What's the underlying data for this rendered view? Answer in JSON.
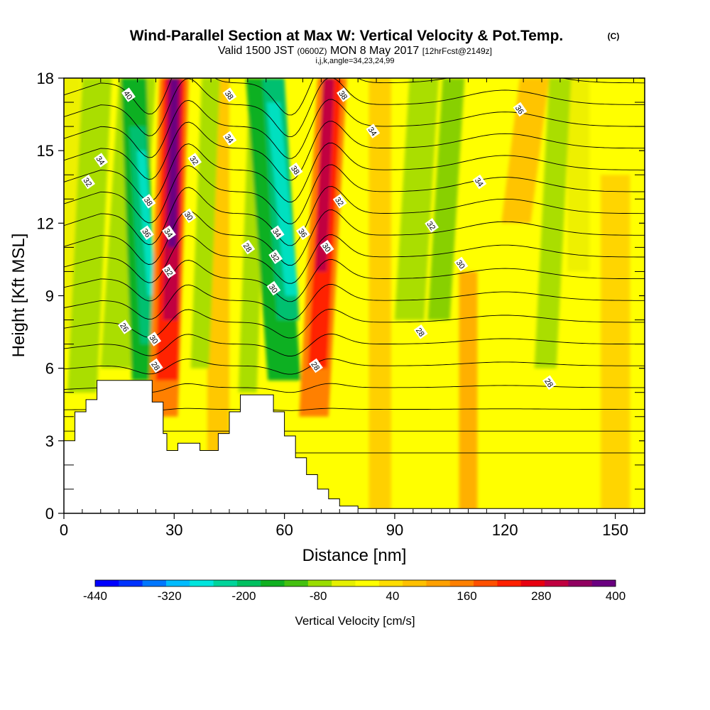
{
  "header": {
    "title": "Wind-Parallel Section at Max W: Vertical Velocity & Pot.Temp.",
    "title_mark": "(C)",
    "valid_prefix": "Valid 1500 JST",
    "valid_utc": "(0600Z)",
    "valid_date": "MON 8 May 2017",
    "forecast": "[12hrFcst@2149z]",
    "indices": "i,j,k,angle=34,23,24,99"
  },
  "chart_data": {
    "type": "heatmap",
    "xlabel": "Distance [nm]",
    "ylabel": "Height [Kft MSL]",
    "xlim": [
      0,
      158
    ],
    "ylim": [
      0,
      18
    ],
    "x_ticks": [
      0,
      30,
      60,
      90,
      120,
      150
    ],
    "x_tick_labels": [
      "0",
      "30",
      "60",
      "90",
      "120",
      "150"
    ],
    "y_ticks": [
      0,
      3,
      6,
      9,
      12,
      15,
      18
    ],
    "y_tick_labels": [
      "0",
      "3",
      "6",
      "9",
      "12",
      "15",
      "18"
    ],
    "colorbar": {
      "label": "Vertical Velocity [cm/s]",
      "tick_labels": [
        "-440",
        "-320",
        "-200",
        "-80",
        "40",
        "160",
        "280",
        "400"
      ],
      "colors": [
        "#0000ff",
        "#0033ff",
        "#0077ff",
        "#00bbff",
        "#00e5dd",
        "#00d49a",
        "#00c060",
        "#10b020",
        "#44c010",
        "#99dd00",
        "#e6f000",
        "#ffff00",
        "#ffdd00",
        "#ffc000",
        "#ffa000",
        "#ff8000",
        "#ff5000",
        "#ff2000",
        "#e80010",
        "#c00040",
        "#900060",
        "#6a0080"
      ]
    },
    "theta_contour_labels": [
      {
        "x": 17.5,
        "y": 17.3,
        "text": "40"
      },
      {
        "x": 45,
        "y": 17.3,
        "text": "38"
      },
      {
        "x": 76,
        "y": 17.3,
        "text": "38"
      },
      {
        "x": 124,
        "y": 16.7,
        "text": "36"
      },
      {
        "x": 84,
        "y": 15.8,
        "text": "34"
      },
      {
        "x": 45,
        "y": 15.5,
        "text": "34"
      },
      {
        "x": 10,
        "y": 14.6,
        "text": "34"
      },
      {
        "x": 35.5,
        "y": 14.6,
        "text": "32"
      },
      {
        "x": 63,
        "y": 14.2,
        "text": "38"
      },
      {
        "x": 6.5,
        "y": 13.7,
        "text": "32"
      },
      {
        "x": 113,
        "y": 13.7,
        "text": "34"
      },
      {
        "x": 23,
        "y": 12.9,
        "text": "38"
      },
      {
        "x": 75,
        "y": 12.9,
        "text": "32"
      },
      {
        "x": 34,
        "y": 12.3,
        "text": "30"
      },
      {
        "x": 100,
        "y": 11.9,
        "text": "32"
      },
      {
        "x": 22.5,
        "y": 11.6,
        "text": "36"
      },
      {
        "x": 28.5,
        "y": 11.6,
        "text": "34"
      },
      {
        "x": 58,
        "y": 11.6,
        "text": "34"
      },
      {
        "x": 65,
        "y": 11.6,
        "text": "36"
      },
      {
        "x": 50,
        "y": 11.0,
        "text": "28"
      },
      {
        "x": 71.5,
        "y": 11.0,
        "text": "30"
      },
      {
        "x": 57.5,
        "y": 10.6,
        "text": "32"
      },
      {
        "x": 108,
        "y": 10.3,
        "text": "30"
      },
      {
        "x": 28.5,
        "y": 10.0,
        "text": "32"
      },
      {
        "x": 57,
        "y": 9.3,
        "text": "30"
      },
      {
        "x": 16.5,
        "y": 7.7,
        "text": "26"
      },
      {
        "x": 97,
        "y": 7.5,
        "text": "28"
      },
      {
        "x": 24.5,
        "y": 7.2,
        "text": "30"
      },
      {
        "x": 25,
        "y": 6.1,
        "text": "28"
      },
      {
        "x": 68.5,
        "y": 6.1,
        "text": "28"
      },
      {
        "x": 132,
        "y": 5.4,
        "text": "28"
      }
    ],
    "terrain_profile": [
      [
        0,
        3.0
      ],
      [
        3,
        3.0
      ],
      [
        3,
        4.2
      ],
      [
        6,
        4.2
      ],
      [
        6,
        4.7
      ],
      [
        9,
        4.7
      ],
      [
        9,
        5.5
      ],
      [
        24,
        5.5
      ],
      [
        24,
        4.6
      ],
      [
        27,
        4.6
      ],
      [
        27,
        3.3
      ],
      [
        28,
        3.3
      ],
      [
        28,
        2.6
      ],
      [
        31,
        2.6
      ],
      [
        31,
        2.9
      ],
      [
        37,
        2.9
      ],
      [
        37,
        2.6
      ],
      [
        42,
        2.6
      ],
      [
        42,
        3.3
      ],
      [
        45,
        3.3
      ],
      [
        45,
        4.2
      ],
      [
        48,
        4.2
      ],
      [
        48,
        4.9
      ],
      [
        57,
        4.9
      ],
      [
        57,
        4.2
      ],
      [
        60,
        4.2
      ],
      [
        60,
        3.2
      ],
      [
        63,
        3.2
      ],
      [
        63,
        2.3
      ],
      [
        66,
        2.3
      ],
      [
        66,
        1.6
      ],
      [
        69,
        1.6
      ],
      [
        69,
        1.0
      ],
      [
        72,
        1.0
      ],
      [
        72,
        0.6
      ],
      [
        75,
        0.6
      ],
      [
        75,
        0.3
      ],
      [
        80,
        0.3
      ],
      [
        80,
        0.2
      ],
      [
        158,
        0.2
      ]
    ]
  }
}
